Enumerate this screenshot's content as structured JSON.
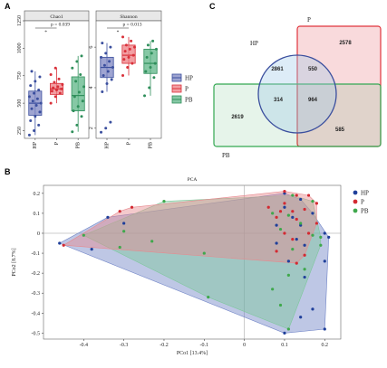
{
  "panels": {
    "a": "A",
    "b": "B",
    "c": "C"
  },
  "chart_data": [
    {
      "type": "box",
      "title": "Chao1",
      "categories": [
        "HP",
        "P",
        "PB"
      ],
      "ylim": [
        180,
        1250
      ],
      "yticks": [
        250,
        500,
        750,
        1000,
        1250
      ],
      "annotation": {
        "p": "p = 0.039",
        "sig": "*"
      },
      "series": [
        {
          "name": "HP",
          "color": "#3b4f9e",
          "fill": "#7d86c2",
          "q1": 390,
          "median": 500,
          "q3": 610,
          "wlo": 210,
          "whi": 790,
          "points": [
            210,
            250,
            300,
            340,
            380,
            420,
            450,
            480,
            500,
            520,
            540,
            560,
            590,
            620,
            660,
            700,
            740,
            790
          ]
        },
        {
          "name": "P",
          "color": "#d9313a",
          "fill": "#ee7e83",
          "q1": 580,
          "median": 630,
          "q3": 680,
          "wlo": 500,
          "whi": 820,
          "points": [
            500,
            560,
            590,
            610,
            620,
            630,
            640,
            650,
            670,
            690,
            720,
            760,
            820
          ]
        },
        {
          "name": "PB",
          "color": "#2f8f5b",
          "fill": "#5eb587",
          "q1": 430,
          "median": 570,
          "q3": 740,
          "wlo": 240,
          "whi": 930,
          "points": [
            240,
            300,
            380,
            430,
            470,
            520,
            560,
            600,
            650,
            700,
            760,
            820,
            880,
            930
          ]
        }
      ]
    },
    {
      "type": "box",
      "title": "Shannon",
      "categories": [
        "HP",
        "P",
        "PB"
      ],
      "ylim": [
        1.5,
        7.3
      ],
      "yticks": [
        2,
        4,
        6
      ],
      "annotation": {
        "p": "p = 0.013",
        "sig": "*"
      },
      "series": [
        {
          "name": "HP",
          "color": "#3b4f9e",
          "fill": "#7d86c2",
          "q1": 4.5,
          "median": 5.0,
          "q3": 5.5,
          "wlo": 3.8,
          "whi": 6.2,
          "points": [
            1.8,
            2.0,
            2.3,
            3.8,
            4.2,
            4.4,
            4.6,
            4.8,
            5.0,
            5.1,
            5.3,
            5.5,
            5.7,
            6.0,
            6.2
          ]
        },
        {
          "name": "P",
          "color": "#d9313a",
          "fill": "#ee7e83",
          "q1": 5.2,
          "median": 5.6,
          "q3": 6.1,
          "wlo": 4.6,
          "whi": 6.5,
          "points": [
            4.6,
            5.0,
            5.2,
            5.4,
            5.5,
            5.6,
            5.8,
            5.9,
            6.0,
            6.1,
            6.3,
            6.5
          ]
        },
        {
          "name": "PB",
          "color": "#2f8f5b",
          "fill": "#5eb587",
          "q1": 4.7,
          "median": 5.2,
          "q3": 5.9,
          "wlo": 3.6,
          "whi": 6.3,
          "points": [
            3.6,
            4.0,
            4.5,
            4.8,
            5.0,
            5.2,
            5.5,
            5.7,
            5.9,
            6.1,
            6.3
          ]
        }
      ]
    },
    {
      "type": "venn",
      "sets": [
        {
          "name": "HP",
          "color": "#3b4f9e"
        },
        {
          "name": "P",
          "color": "#e0343c"
        },
        {
          "name": "PB",
          "color": "#33a852"
        }
      ],
      "regions": {
        "HP_only": 2861,
        "HP_P": 550,
        "P_only": 2578,
        "HP_PB": 314,
        "HP_P_PB": 964,
        "PB_only": 2619,
        "P_PB": 585
      }
    },
    {
      "type": "scatter",
      "title": "PCA",
      "xlabel": "PCo1 [13.4%]",
      "ylabel": "PCo2 [8.7%]",
      "xlim": [
        -0.5,
        0.24
      ],
      "ylim": [
        -0.53,
        0.24
      ],
      "xticks": [
        -0.4,
        -0.3,
        -0.2,
        -0.1,
        0.0,
        0.1,
        0.2
      ],
      "yticks": [
        0.2,
        0.1,
        0.0,
        -0.1,
        -0.2,
        -0.3,
        -0.4,
        -0.5
      ],
      "legend": "right",
      "series": [
        {
          "name": "HP",
          "color": "#1f3f9a",
          "hull_fill": "#6f83c6",
          "points": [
            [
              -0.46,
              -0.05
            ],
            [
              -0.38,
              -0.08
            ],
            [
              -0.34,
              0.08
            ],
            [
              -0.3,
              0.05
            ],
            [
              0.1,
              0.2
            ],
            [
              0.14,
              0.17
            ],
            [
              0.1,
              0.13
            ],
            [
              0.17,
              0.1
            ],
            [
              0.08,
              0.04
            ],
            [
              0.14,
              0.04
            ],
            [
              0.2,
              0.0
            ],
            [
              0.08,
              -0.05
            ],
            [
              0.13,
              -0.03
            ],
            [
              0.15,
              -0.06
            ],
            [
              0.11,
              -0.14
            ],
            [
              0.2,
              -0.14
            ],
            [
              0.15,
              -0.22
            ],
            [
              0.17,
              -0.38
            ],
            [
              0.14,
              -0.42
            ],
            [
              0.1,
              -0.5
            ],
            [
              0.2,
              -0.48
            ],
            [
              0.21,
              -0.02
            ],
            [
              0.12,
              0.08
            ]
          ]
        },
        {
          "name": "P",
          "color": "#d32a32",
          "hull_fill": "#e78a8f",
          "points": [
            [
              -0.45,
              -0.06
            ],
            [
              -0.31,
              0.11
            ],
            [
              -0.28,
              0.13
            ],
            [
              0.1,
              0.21
            ],
            [
              0.13,
              0.19
            ],
            [
              0.16,
              0.19
            ],
            [
              0.18,
              0.15
            ],
            [
              0.1,
              0.15
            ],
            [
              0.06,
              0.13
            ],
            [
              0.09,
              0.11
            ],
            [
              0.12,
              0.11
            ],
            [
              0.15,
              0.12
            ],
            [
              0.08,
              0.08
            ],
            [
              0.13,
              0.07
            ],
            [
              0.18,
              0.05
            ],
            [
              0.1,
              0.0
            ],
            [
              0.16,
              0.0
            ],
            [
              0.12,
              -0.03
            ],
            [
              0.08,
              -0.09
            ],
            [
              0.15,
              -0.11
            ],
            [
              0.13,
              -0.15
            ]
          ]
        },
        {
          "name": "PB",
          "color": "#3fa84c",
          "hull_fill": "#7cc79a",
          "points": [
            [
              -0.4,
              -0.01
            ],
            [
              -0.31,
              -0.07
            ],
            [
              -0.3,
              0.01
            ],
            [
              -0.23,
              -0.04
            ],
            [
              -0.2,
              0.16
            ],
            [
              -0.1,
              -0.1
            ],
            [
              -0.09,
              -0.32
            ],
            [
              0.12,
              0.19
            ],
            [
              0.17,
              0.16
            ],
            [
              0.07,
              0.1
            ],
            [
              0.11,
              0.09
            ],
            [
              0.14,
              0.05
            ],
            [
              0.09,
              0.02
            ],
            [
              0.17,
              -0.01
            ],
            [
              0.19,
              -0.06
            ],
            [
              0.12,
              -0.08
            ],
            [
              0.15,
              -0.18
            ],
            [
              0.11,
              -0.21
            ],
            [
              0.07,
              -0.28
            ],
            [
              0.09,
              -0.36
            ],
            [
              0.11,
              -0.48
            ],
            [
              0.19,
              -0.02
            ]
          ]
        }
      ]
    }
  ]
}
